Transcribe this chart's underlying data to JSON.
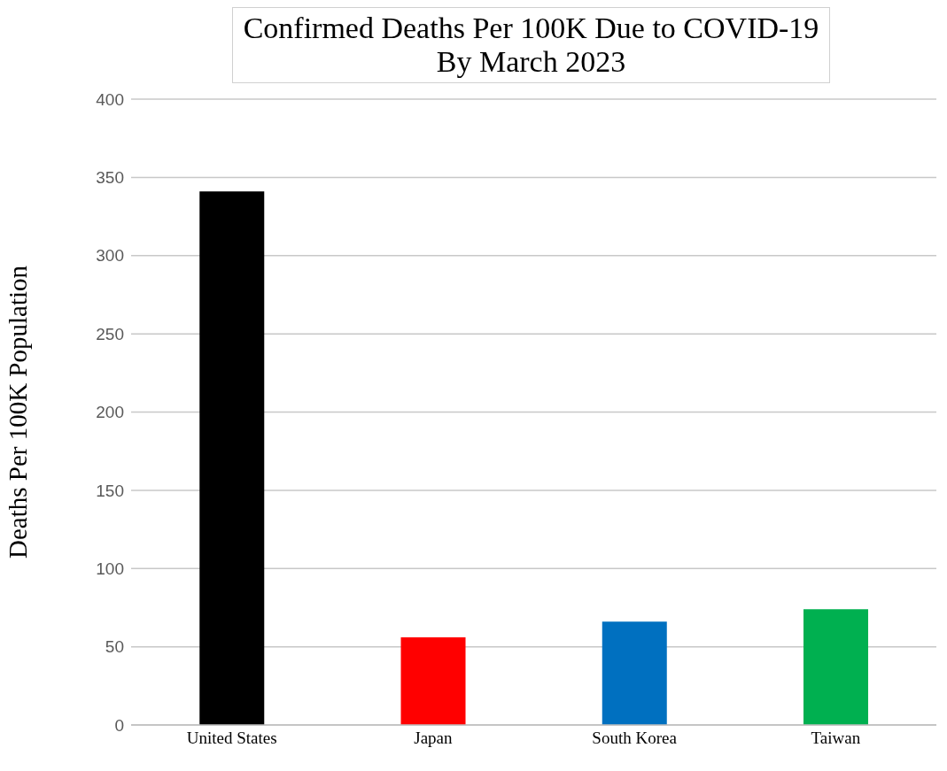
{
  "chart_data": {
    "type": "bar",
    "title": "Confirmed Deaths Per 100K Due to COVID-19\nBy March 2023",
    "ylabel": "Deaths Per 100K Population",
    "categories": [
      "United States",
      "Japan",
      "South Korea",
      "Taiwan"
    ],
    "values": [
      341,
      56,
      66,
      74
    ],
    "colors": [
      "#000000",
      "#ff0000",
      "#0070c0",
      "#00b050"
    ],
    "ylim": [
      0,
      400
    ],
    "yticks": [
      0,
      50,
      100,
      150,
      200,
      250,
      300,
      350,
      400
    ],
    "grid": "y"
  }
}
